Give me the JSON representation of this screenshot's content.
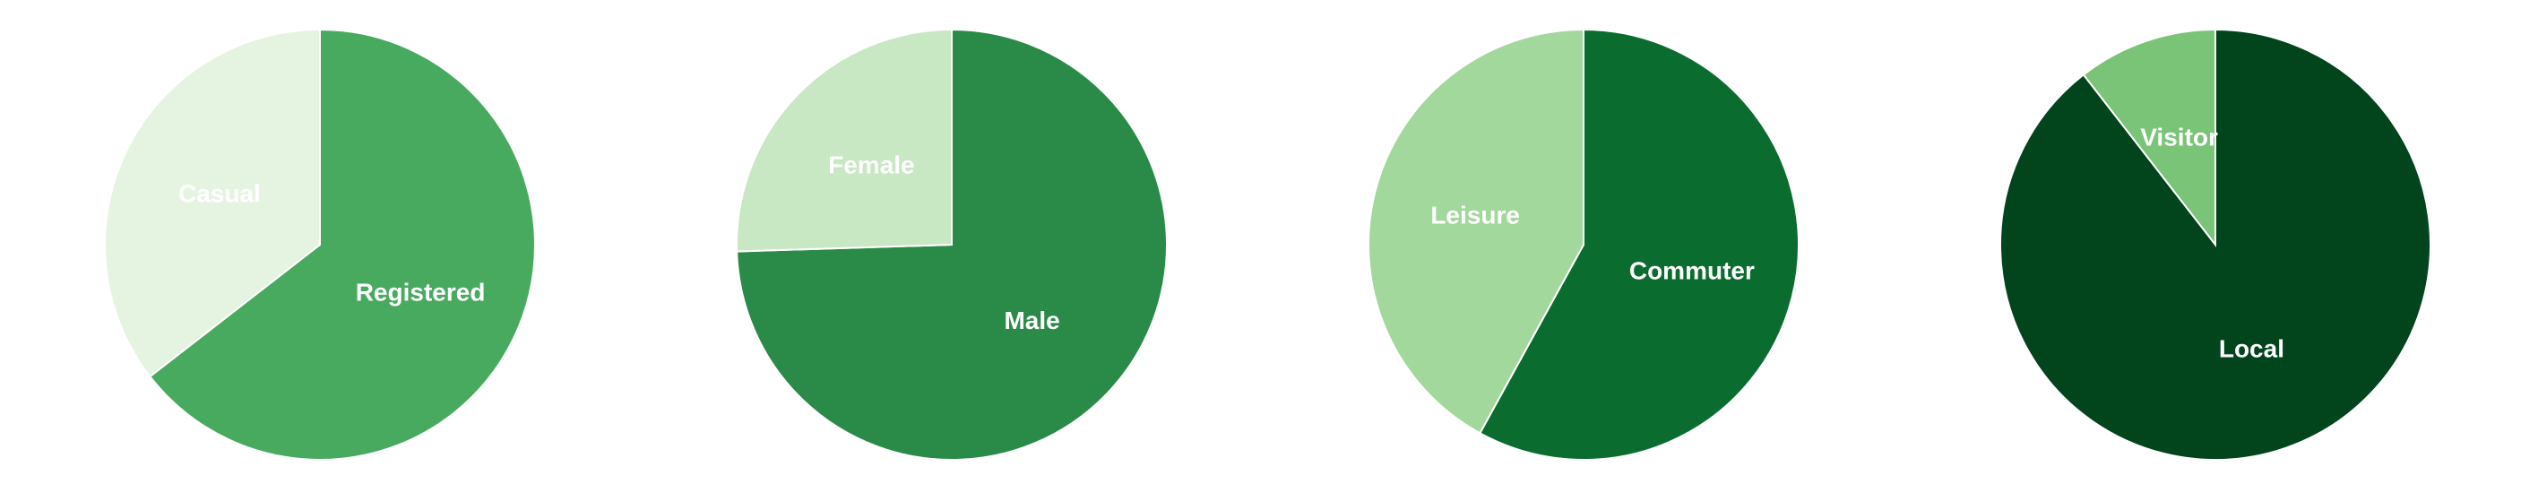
{
  "chart_data": [
    {
      "type": "pie",
      "title": "",
      "slices": [
        {
          "label": "Registered",
          "value": 64.5,
          "color": "#48aa5f"
        },
        {
          "label": "Casual",
          "value": 35.5,
          "color": "#e5f4e0"
        }
      ]
    },
    {
      "type": "pie",
      "title": "",
      "slices": [
        {
          "label": "Male",
          "value": 74.5,
          "color": "#2a8a48"
        },
        {
          "label": "Female",
          "value": 25.5,
          "color": "#c7e8c2"
        }
      ]
    },
    {
      "type": "pie",
      "title": "",
      "slices": [
        {
          "label": "Commuter",
          "value": 58,
          "color": "#0b6c30"
        },
        {
          "label": "Leisure",
          "value": 42,
          "color": "#a2d89c"
        }
      ]
    },
    {
      "type": "pie",
      "title": "",
      "slices": [
        {
          "label": "Local",
          "value": 89.5,
          "color": "#02441c"
        },
        {
          "label": "Visitor",
          "value": 10.5,
          "color": "#79c477"
        }
      ]
    }
  ]
}
